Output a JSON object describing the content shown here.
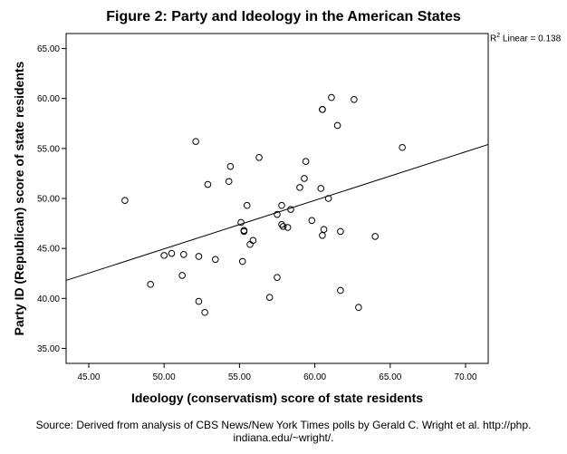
{
  "chart_data": {
    "type": "scatter",
    "title": "Figure 2: Party and Ideology in the American States",
    "xlabel": "Ideology (conservatism) score of state residents",
    "ylabel": "Party ID (Republican) score of state residents",
    "xlim": [
      43.5,
      71.5
    ],
    "ylim": [
      33.5,
      66.5
    ],
    "x_ticks": [
      "45.00",
      "50.00",
      "55.00",
      "60.00",
      "65.00",
      "70.00"
    ],
    "y_ticks": [
      "35.00",
      "40.00",
      "45.00",
      "50.00",
      "55.00",
      "60.00",
      "65.00"
    ],
    "fit_line": {
      "label_prefix": "R",
      "label_sup": "2",
      "label_suffix": " Linear = 0.138",
      "y_at_xmin": 41.8,
      "y_at_xmax": 55.4
    },
    "grid": false,
    "points": [
      {
        "x": 47.4,
        "y": 49.8
      },
      {
        "x": 49.1,
        "y": 41.4
      },
      {
        "x": 50.0,
        "y": 44.3
      },
      {
        "x": 50.5,
        "y": 44.5
      },
      {
        "x": 51.2,
        "y": 42.3
      },
      {
        "x": 51.3,
        "y": 44.4
      },
      {
        "x": 52.1,
        "y": 55.7
      },
      {
        "x": 52.3,
        "y": 39.7
      },
      {
        "x": 52.3,
        "y": 44.2
      },
      {
        "x": 52.7,
        "y": 38.6
      },
      {
        "x": 52.9,
        "y": 51.4
      },
      {
        "x": 53.4,
        "y": 43.9
      },
      {
        "x": 54.3,
        "y": 51.7
      },
      {
        "x": 54.4,
        "y": 53.2
      },
      {
        "x": 55.1,
        "y": 47.6
      },
      {
        "x": 55.2,
        "y": 43.7
      },
      {
        "x": 55.3,
        "y": 46.7
      },
      {
        "x": 55.3,
        "y": 46.8
      },
      {
        "x": 55.5,
        "y": 49.3
      },
      {
        "x": 55.7,
        "y": 45.4
      },
      {
        "x": 55.9,
        "y": 45.8
      },
      {
        "x": 56.3,
        "y": 54.1
      },
      {
        "x": 57.0,
        "y": 40.1
      },
      {
        "x": 57.5,
        "y": 48.4
      },
      {
        "x": 57.5,
        "y": 42.1
      },
      {
        "x": 57.8,
        "y": 47.4
      },
      {
        "x": 57.8,
        "y": 49.3
      },
      {
        "x": 57.9,
        "y": 47.2
      },
      {
        "x": 58.2,
        "y": 47.1
      },
      {
        "x": 58.4,
        "y": 48.9
      },
      {
        "x": 59.0,
        "y": 51.1
      },
      {
        "x": 59.3,
        "y": 52.0
      },
      {
        "x": 59.4,
        "y": 53.7
      },
      {
        "x": 59.8,
        "y": 47.8
      },
      {
        "x": 60.4,
        "y": 51.0
      },
      {
        "x": 60.5,
        "y": 58.9
      },
      {
        "x": 60.5,
        "y": 58.9
      },
      {
        "x": 60.5,
        "y": 46.3
      },
      {
        "x": 60.6,
        "y": 46.9
      },
      {
        "x": 60.9,
        "y": 50.0
      },
      {
        "x": 61.1,
        "y": 60.1
      },
      {
        "x": 61.5,
        "y": 57.3
      },
      {
        "x": 61.7,
        "y": 46.7
      },
      {
        "x": 61.7,
        "y": 40.8
      },
      {
        "x": 62.6,
        "y": 59.9
      },
      {
        "x": 62.9,
        "y": 39.1
      },
      {
        "x": 64.0,
        "y": 46.2
      },
      {
        "x": 65.8,
        "y": 55.1
      }
    ]
  },
  "source_note": "Source: Derived from analysis of CBS News/New York Times polls by Gerald C. Wright et al. http://php. indiana.edu/~wright/."
}
